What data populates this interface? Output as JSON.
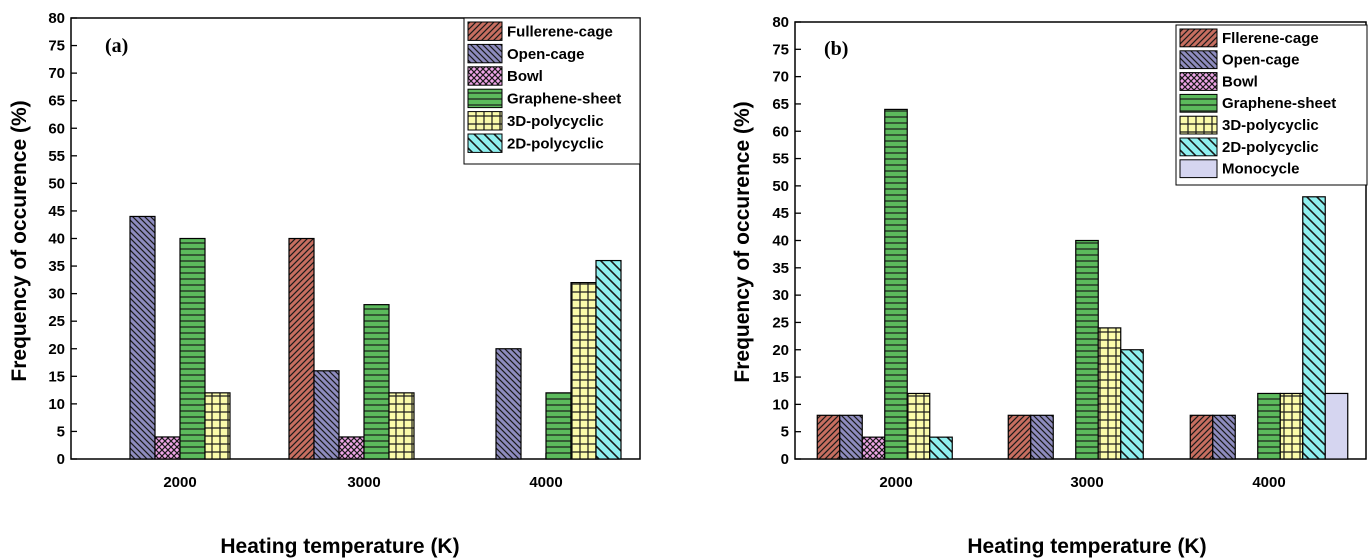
{
  "chart_data": [
    {
      "type": "bar",
      "panel_label": "(a)",
      "xlabel": "Heating temperature (K)",
      "ylabel": "Frequency of occurence (%)",
      "categories": [
        "2000",
        "3000",
        "4000"
      ],
      "ylim": [
        0,
        80
      ],
      "yticks": [
        0,
        5,
        10,
        15,
        20,
        25,
        30,
        35,
        40,
        45,
        50,
        55,
        60,
        65,
        70,
        75,
        80
      ],
      "legend_position": "top-right",
      "series": [
        {
          "name": "Fullerene-cage",
          "color": "#c76e60",
          "pattern": "diag-fwd",
          "values": [
            0,
            40,
            0
          ]
        },
        {
          "name": "Open-cage",
          "color": "#8e8cbf",
          "pattern": "diag-back",
          "values": [
            44,
            16,
            20
          ]
        },
        {
          "name": "Bowl",
          "color": "#f0a6e8",
          "pattern": "cross",
          "values": [
            4,
            4,
            0
          ]
        },
        {
          "name": "Graphene-sheet",
          "color": "#5cba5c",
          "pattern": "horiz",
          "values": [
            40,
            28,
            12
          ]
        },
        {
          "name": "3D-polycyclic",
          "color": "#fafaaa",
          "pattern": "grid",
          "values": [
            12,
            12,
            32
          ]
        },
        {
          "name": "2D-polycyclic",
          "color": "#8ff0ef",
          "pattern": "diag-back-wide",
          "values": [
            0,
            0,
            36
          ]
        }
      ]
    },
    {
      "type": "bar",
      "panel_label": "(b)",
      "xlabel": "Heating temperature (K)",
      "ylabel": "Frequency of occurence (%)",
      "categories": [
        "2000",
        "3000",
        "4000"
      ],
      "ylim": [
        0,
        80
      ],
      "yticks": [
        0,
        5,
        10,
        15,
        20,
        25,
        30,
        35,
        40,
        45,
        50,
        55,
        60,
        65,
        70,
        75,
        80
      ],
      "legend_position": "top-right",
      "series": [
        {
          "name": "Fllerene-cage",
          "color": "#c76e60",
          "pattern": "diag-fwd",
          "values": [
            8,
            8,
            8
          ]
        },
        {
          "name": "Open-cage",
          "color": "#8e8cbf",
          "pattern": "diag-back",
          "values": [
            8,
            8,
            8
          ]
        },
        {
          "name": "Bowl",
          "color": "#f0a6e8",
          "pattern": "cross",
          "values": [
            4,
            0,
            0
          ]
        },
        {
          "name": "Graphene-sheet",
          "color": "#5cba5c",
          "pattern": "horiz",
          "values": [
            64,
            40,
            12
          ]
        },
        {
          "name": "3D-polycyclic",
          "color": "#fafaaa",
          "pattern": "grid",
          "values": [
            12,
            24,
            12
          ]
        },
        {
          "name": "2D-polycyclic",
          "color": "#8ff0ef",
          "pattern": "diag-back-wide",
          "values": [
            4,
            20,
            48
          ]
        },
        {
          "name": "Monocycle",
          "color": "#d5d5f0",
          "pattern": "none",
          "values": [
            0,
            0,
            12
          ]
        }
      ]
    }
  ]
}
